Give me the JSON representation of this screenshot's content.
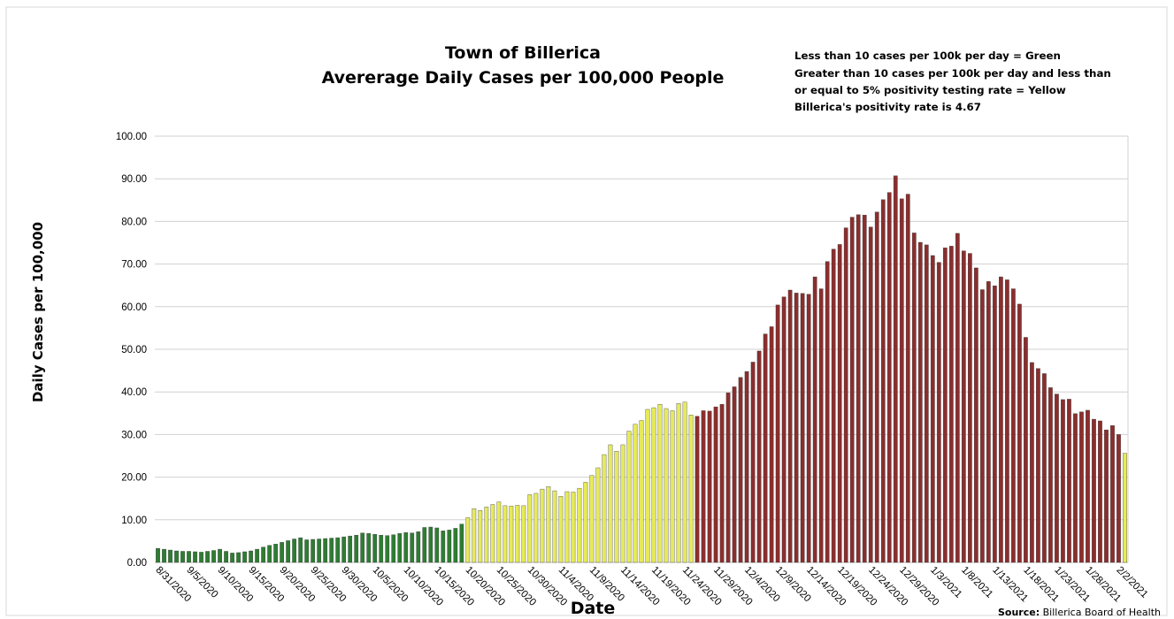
{
  "chart_data": {
    "type": "bar",
    "title_lines": [
      "Town of Billerica",
      "Avererage Daily Cases per 100,000 People"
    ],
    "annotation_lines": [
      "Less than 10 cases per 100k per day = Green",
      "Greater than 10 cases per 100k per day and less than",
      "or equal to 5% positivity testing rate = Yellow",
      "Billerica's positivity rate is 4.67"
    ],
    "ylabel": "Daily Cases per 100,000",
    "xlabel": "Date",
    "source_label": "Source:",
    "source_text": " Billerica Board of Health",
    "ylim": [
      0,
      100
    ],
    "y_ticks": [
      "0.00",
      "10.00",
      "20.00",
      "30.00",
      "40.00",
      "50.00",
      "60.00",
      "70.00",
      "80.00",
      "90.00",
      "100.00"
    ],
    "x_tick_labels": [
      "8/31/2020",
      "9/5/2020",
      "9/10/2020",
      "9/15/2020",
      "9/20/2020",
      "9/25/2020",
      "9/30/2020",
      "10/5/2020",
      "10/10/2020",
      "10/15/2020",
      "10/20/2020",
      "10/25/2020",
      "10/30/2020",
      "11/4/2020",
      "11/9/2020",
      "11/14/2020",
      "11/19/2020",
      "11/24/2020",
      "11/29/2020",
      "12/4/2020",
      "12/9/2020",
      "12/14/2020",
      "12/19/2020",
      "12/24/2020",
      "12/29/2020",
      "1/3/2021",
      "1/8/2021",
      "1/13/2021",
      "1/18/2021",
      "1/23/2021",
      "1/28/2021",
      "2/2/2021"
    ],
    "grid": true,
    "colors": {
      "green": "#2e7d32",
      "yellow": "#e6ea5a",
      "red": "#8b2e2e"
    },
    "color_sequence_note_free": true,
    "values": [
      3.3,
      3.1,
      2.9,
      2.7,
      2.6,
      2.6,
      2.5,
      2.4,
      2.6,
      2.8,
      3.1,
      2.6,
      2.2,
      2.3,
      2.5,
      2.7,
      3.1,
      3.6,
      4.0,
      4.3,
      4.7,
      5.1,
      5.5,
      5.8,
      5.3,
      5.4,
      5.5,
      5.6,
      5.7,
      5.8,
      6.0,
      6.2,
      6.4,
      6.9,
      6.8,
      6.6,
      6.4,
      6.3,
      6.5,
      6.8,
      7.0,
      6.9,
      7.2,
      8.2,
      8.3,
      8.1,
      7.4,
      7.6,
      8.0,
      9.0,
      10.5,
      12.6,
      12.2,
      13.0,
      13.6,
      14.2,
      13.3,
      13.2,
      13.4,
      13.3,
      15.9,
      16.2,
      17.2,
      17.8,
      16.8,
      15.5,
      16.6,
      16.5,
      17.4,
      18.8,
      20.4,
      22.2,
      25.3,
      27.6,
      26.1,
      27.6,
      30.8,
      32.4,
      33.3,
      35.9,
      36.3,
      37.1,
      36.1,
      35.6,
      37.3,
      37.6,
      34.6,
      34.3,
      35.6,
      35.5,
      36.5,
      37.1,
      39.8,
      41.2,
      43.4,
      44.8,
      47.0,
      49.6,
      53.6,
      55.3,
      60.4,
      62.3,
      63.9,
      63.2,
      63.1,
      62.9,
      67.0,
      64.2,
      70.6,
      73.5,
      74.6,
      78.5,
      81.0,
      81.6,
      81.5,
      78.7,
      82.2,
      85.1,
      86.8,
      90.7,
      85.3,
      86.4,
      77.3,
      75.1,
      74.5,
      72.0,
      70.4,
      73.8,
      74.2,
      77.2,
      73.1,
      72.5,
      69.1,
      64.0,
      65.9,
      64.9,
      67.0,
      66.3,
      64.2,
      60.6,
      52.8,
      46.9,
      45.5,
      44.3,
      41.0,
      39.5,
      38.2,
      38.3,
      34.9,
      35.3,
      35.7,
      33.6,
      33.2,
      31.1,
      32.1,
      30.0,
      25.6
    ],
    "color_groups": [
      {
        "color": "green",
        "count": 50
      },
      {
        "color": "yellow",
        "count": 37
      },
      {
        "color": "red",
        "count": 69
      },
      {
        "color": "yellow",
        "count": 1
      }
    ]
  }
}
